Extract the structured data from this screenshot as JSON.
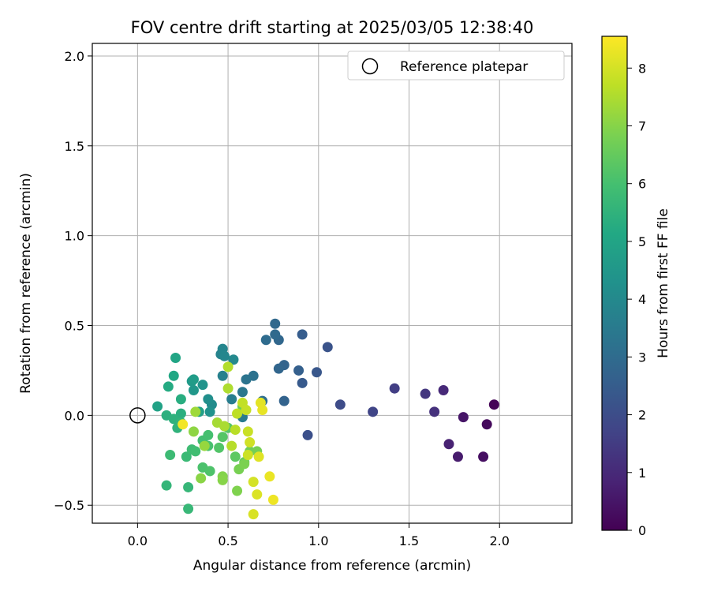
{
  "chart_data": {
    "type": "scatter",
    "title": "FOV centre drift starting at 2025/03/05 12:38:40",
    "xlabel": "Angular distance from reference (arcmin)",
    "ylabel": "Rotation from reference (arcmin)",
    "xlim": [
      -0.25,
      2.4
    ],
    "ylim": [
      -0.6,
      2.07
    ],
    "xticks": [
      0.0,
      0.5,
      1.0,
      1.5,
      2.0
    ],
    "xtick_labels": [
      "0.0",
      "0.5",
      "1.0",
      "1.5",
      "2.0"
    ],
    "yticks": [
      -0.5,
      0.0,
      0.5,
      1.0,
      1.5,
      2.0
    ],
    "ytick_labels": [
      "−0.5",
      "0.0",
      "0.5",
      "1.0",
      "1.5",
      "2.0"
    ],
    "grid": true,
    "colormap": "viridis",
    "colorbar": {
      "label": "Hours from first FF file",
      "range": [
        0,
        8.55
      ],
      "ticks": [
        0,
        1,
        2,
        3,
        4,
        5,
        6,
        7,
        8
      ],
      "tick_labels": [
        "0",
        "1",
        "2",
        "3",
        "4",
        "5",
        "6",
        "7",
        "8"
      ]
    },
    "legend": {
      "label": "Reference platepar",
      "position": "top-right"
    },
    "reference_point": {
      "x": 0.0,
      "y": 0.0,
      "marker": "open-circle",
      "color": "#000000"
    },
    "points": [
      {
        "x": 1.97,
        "y": 0.06,
        "t": 0.05
      },
      {
        "x": 1.93,
        "y": -0.05,
        "t": 0.2
      },
      {
        "x": 1.91,
        "y": -0.23,
        "t": 0.35
      },
      {
        "x": 1.8,
        "y": -0.01,
        "t": 0.5
      },
      {
        "x": 1.77,
        "y": -0.23,
        "t": 0.65
      },
      {
        "x": 1.72,
        "y": -0.16,
        "t": 0.8
      },
      {
        "x": 1.69,
        "y": 0.14,
        "t": 1.0
      },
      {
        "x": 1.64,
        "y": 0.02,
        "t": 1.2
      },
      {
        "x": 1.59,
        "y": 0.12,
        "t": 1.35
      },
      {
        "x": 1.42,
        "y": 0.15,
        "t": 1.55
      },
      {
        "x": 1.3,
        "y": 0.02,
        "t": 1.75
      },
      {
        "x": 1.12,
        "y": 0.06,
        "t": 1.95
      },
      {
        "x": 0.94,
        "y": -0.11,
        "t": 2.1
      },
      {
        "x": 1.05,
        "y": 0.38,
        "t": 2.2
      },
      {
        "x": 0.99,
        "y": 0.24,
        "t": 2.3
      },
      {
        "x": 0.91,
        "y": 0.18,
        "t": 2.4
      },
      {
        "x": 0.91,
        "y": 0.45,
        "t": 2.5
      },
      {
        "x": 0.89,
        "y": 0.25,
        "t": 2.6
      },
      {
        "x": 0.81,
        "y": 0.08,
        "t": 2.7
      },
      {
        "x": 0.81,
        "y": 0.28,
        "t": 2.75
      },
      {
        "x": 0.78,
        "y": 0.26,
        "t": 2.8
      },
      {
        "x": 0.78,
        "y": 0.42,
        "t": 2.85
      },
      {
        "x": 0.76,
        "y": 0.51,
        "t": 2.9
      },
      {
        "x": 0.76,
        "y": 0.45,
        "t": 2.95
      },
      {
        "x": 0.71,
        "y": 0.42,
        "t": 3.0
      },
      {
        "x": 0.69,
        "y": 0.08,
        "t": 3.1
      },
      {
        "x": 0.64,
        "y": 0.22,
        "t": 3.2
      },
      {
        "x": 0.6,
        "y": 0.2,
        "t": 3.3
      },
      {
        "x": 0.58,
        "y": 0.13,
        "t": 3.4
      },
      {
        "x": 0.58,
        "y": -0.01,
        "t": 3.5
      },
      {
        "x": 0.52,
        "y": 0.09,
        "t": 3.6
      },
      {
        "x": 0.47,
        "y": 0.22,
        "t": 3.7
      },
      {
        "x": 0.46,
        "y": 0.34,
        "t": 3.8
      },
      {
        "x": 0.47,
        "y": 0.37,
        "t": 3.85
      },
      {
        "x": 0.48,
        "y": 0.33,
        "t": 3.9
      },
      {
        "x": 0.53,
        "y": 0.31,
        "t": 4.0
      },
      {
        "x": 0.41,
        "y": 0.06,
        "t": 4.1
      },
      {
        "x": 0.39,
        "y": 0.09,
        "t": 4.2
      },
      {
        "x": 0.4,
        "y": 0.02,
        "t": 4.3
      },
      {
        "x": 0.36,
        "y": 0.17,
        "t": 4.4
      },
      {
        "x": 0.31,
        "y": 0.14,
        "t": 4.5
      },
      {
        "x": 0.3,
        "y": 0.19,
        "t": 4.6
      },
      {
        "x": 0.31,
        "y": 0.2,
        "t": 4.7
      },
      {
        "x": 0.34,
        "y": 0.02,
        "t": 4.8
      },
      {
        "x": 0.11,
        "y": 0.05,
        "t": 4.9
      },
      {
        "x": 0.21,
        "y": 0.32,
        "t": 5.0
      },
      {
        "x": 0.2,
        "y": 0.22,
        "t": 5.1
      },
      {
        "x": 0.17,
        "y": 0.16,
        "t": 5.2
      },
      {
        "x": 0.24,
        "y": 0.09,
        "t": 5.3
      },
      {
        "x": 0.24,
        "y": 0.01,
        "t": 5.35
      },
      {
        "x": 0.16,
        "y": 0.0,
        "t": 5.4
      },
      {
        "x": 0.2,
        "y": -0.02,
        "t": 5.45
      },
      {
        "x": 0.22,
        "y": -0.07,
        "t": 5.5
      },
      {
        "x": 0.24,
        "y": -0.04,
        "t": 5.55
      },
      {
        "x": 0.16,
        "y": -0.39,
        "t": 5.6
      },
      {
        "x": 0.28,
        "y": -0.4,
        "t": 5.65
      },
      {
        "x": 0.28,
        "y": -0.52,
        "t": 5.7
      },
      {
        "x": 0.27,
        "y": -0.23,
        "t": 5.75
      },
      {
        "x": 0.18,
        "y": -0.22,
        "t": 5.8
      },
      {
        "x": 0.3,
        "y": -0.19,
        "t": 5.85
      },
      {
        "x": 0.32,
        "y": -0.2,
        "t": 5.9
      },
      {
        "x": 0.36,
        "y": -0.14,
        "t": 5.95
      },
      {
        "x": 0.39,
        "y": -0.11,
        "t": 6.0
      },
      {
        "x": 0.39,
        "y": -0.17,
        "t": 6.05
      },
      {
        "x": 0.36,
        "y": -0.29,
        "t": 6.1
      },
      {
        "x": 0.4,
        "y": -0.31,
        "t": 6.15
      },
      {
        "x": 0.45,
        "y": -0.18,
        "t": 6.2
      },
      {
        "x": 0.47,
        "y": -0.12,
        "t": 6.25
      },
      {
        "x": 0.5,
        "y": -0.07,
        "t": 6.3
      },
      {
        "x": 0.54,
        "y": -0.23,
        "t": 6.4
      },
      {
        "x": 0.59,
        "y": -0.26,
        "t": 6.5
      },
      {
        "x": 0.58,
        "y": 0.05,
        "t": 6.6
      },
      {
        "x": 0.62,
        "y": -0.2,
        "t": 6.7
      },
      {
        "x": 0.66,
        "y": -0.2,
        "t": 6.75
      },
      {
        "x": 0.56,
        "y": -0.3,
        "t": 6.8
      },
      {
        "x": 0.59,
        "y": -0.27,
        "t": 6.85
      },
      {
        "x": 0.55,
        "y": -0.42,
        "t": 6.9
      },
      {
        "x": 0.47,
        "y": -0.34,
        "t": 6.95
      },
      {
        "x": 0.47,
        "y": -0.36,
        "t": 7.0
      },
      {
        "x": 0.35,
        "y": -0.35,
        "t": 7.05
      },
      {
        "x": 0.31,
        "y": -0.09,
        "t": 7.1
      },
      {
        "x": 0.37,
        "y": -0.17,
        "t": 7.2
      },
      {
        "x": 0.32,
        "y": 0.02,
        "t": 7.3
      },
      {
        "x": 0.44,
        "y": -0.04,
        "t": 7.4
      },
      {
        "x": 0.48,
        "y": -0.06,
        "t": 7.45
      },
      {
        "x": 0.5,
        "y": 0.15,
        "t": 7.5
      },
      {
        "x": 0.5,
        "y": 0.27,
        "t": 7.55
      },
      {
        "x": 0.52,
        "y": -0.17,
        "t": 7.6
      },
      {
        "x": 0.54,
        "y": -0.08,
        "t": 7.65
      },
      {
        "x": 0.55,
        "y": 0.01,
        "t": 7.7
      },
      {
        "x": 0.58,
        "y": 0.07,
        "t": 7.75
      },
      {
        "x": 0.6,
        "y": 0.03,
        "t": 7.8
      },
      {
        "x": 0.61,
        "y": -0.09,
        "t": 7.85
      },
      {
        "x": 0.61,
        "y": -0.22,
        "t": 7.9
      },
      {
        "x": 0.62,
        "y": -0.15,
        "t": 7.95
      },
      {
        "x": 0.64,
        "y": -0.37,
        "t": 8.0
      },
      {
        "x": 0.64,
        "y": -0.55,
        "t": 8.05
      },
      {
        "x": 0.66,
        "y": -0.44,
        "t": 8.1
      },
      {
        "x": 0.67,
        "y": -0.23,
        "t": 8.15
      },
      {
        "x": 0.68,
        "y": 0.07,
        "t": 8.2
      },
      {
        "x": 0.69,
        "y": 0.03,
        "t": 8.25
      },
      {
        "x": 0.73,
        "y": -0.34,
        "t": 8.3
      },
      {
        "x": 0.75,
        "y": -0.47,
        "t": 8.35
      },
      {
        "x": 0.25,
        "y": -0.05,
        "t": 8.4
      }
    ]
  }
}
